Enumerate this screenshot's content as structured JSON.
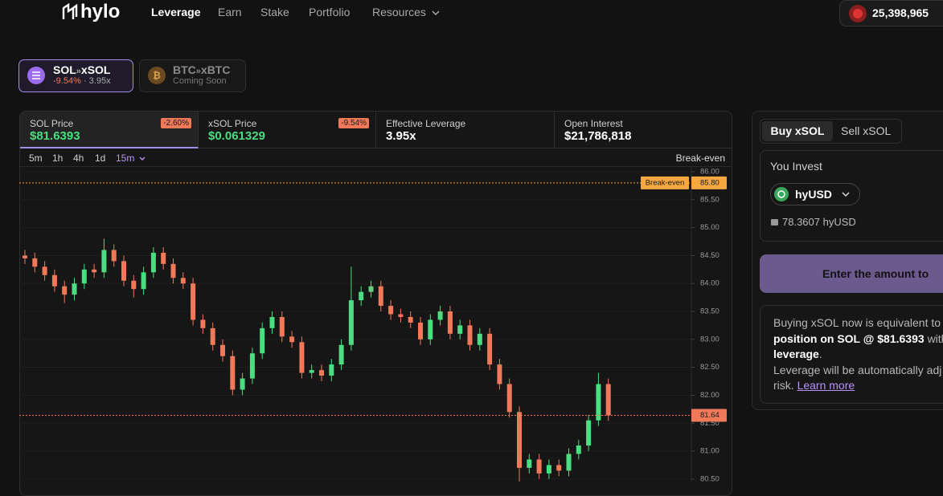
{
  "nav": {
    "logo": "hylo",
    "links": [
      "Leverage",
      "Earn",
      "Stake",
      "Portfolio",
      "Resources"
    ],
    "balance": "25,398,965"
  },
  "pairs": [
    {
      "base": "SOL",
      "sep": "»",
      "target": "xSOL",
      "change": "-9.54%",
      "dot": "·",
      "leverage": "3.95x"
    },
    {
      "base": "BTC",
      "sep": "»",
      "target": "xBTC",
      "status": "Coming Soon"
    }
  ],
  "stats": [
    {
      "label": "SOL Price",
      "value": "$81.6393",
      "badge": "-2.60%"
    },
    {
      "label": "xSOL Price",
      "value": "$0.061329",
      "badge": "-9.54%"
    },
    {
      "label": "Effective Leverage",
      "value": "3.95x"
    },
    {
      "label": "Open Interest",
      "value": "$21,786,818"
    }
  ],
  "timeframes": [
    "5m",
    "1h",
    "4h",
    "1d",
    "15m"
  ],
  "chart_data": {
    "type": "candlestick",
    "indicator": "Break-even",
    "up_color": "#4ade80",
    "down_color": "#f0795a",
    "open": [
      84.5,
      84.45,
      84.3,
      84.15,
      83.95,
      83.8,
      84.0,
      84.25,
      84.2,
      84.6,
      84.4,
      84.05,
      83.9,
      84.2,
      84.55,
      84.35,
      84.1,
      84.0,
      83.35,
      83.2,
      82.9,
      82.7,
      82.1,
      82.3,
      82.75,
      83.2,
      83.4,
      83.05,
      82.95,
      82.4,
      82.45,
      82.35,
      82.55,
      82.9,
      83.7,
      83.85,
      83.95,
      83.6,
      83.45,
      83.4,
      83.3,
      83.0,
      83.35,
      83.5,
      83.1,
      83.25,
      82.9,
      83.1,
      82.55,
      82.2,
      81.7,
      80.7,
      80.85,
      80.6,
      80.75,
      80.65,
      80.95,
      81.1,
      81.55,
      82.2
    ],
    "high": [
      84.6,
      84.55,
      84.4,
      84.25,
      84.05,
      84.1,
      84.35,
      84.35,
      84.8,
      84.7,
      84.5,
      84.15,
      84.3,
      84.65,
      84.65,
      84.45,
      84.2,
      84.1,
      83.45,
      83.3,
      83.0,
      82.8,
      82.4,
      82.85,
      83.3,
      83.5,
      83.5,
      83.15,
      83.05,
      82.55,
      82.55,
      82.65,
      83.0,
      84.3,
      83.95,
      84.05,
      84.05,
      83.7,
      83.55,
      83.5,
      83.4,
      83.45,
      83.6,
      83.6,
      83.35,
      83.35,
      83.2,
      83.2,
      82.65,
      82.3,
      81.8,
      80.95,
      80.95,
      80.85,
      80.85,
      81.05,
      81.2,
      81.65,
      82.4,
      82.3
    ],
    "low": [
      84.35,
      84.2,
      84.05,
      83.85,
      83.65,
      83.7,
      83.9,
      84.1,
      84.1,
      84.3,
      83.95,
      83.75,
      83.8,
      84.1,
      84.25,
      84.0,
      83.9,
      83.25,
      83.1,
      82.8,
      82.6,
      82.0,
      82.0,
      82.2,
      82.65,
      83.1,
      82.95,
      82.85,
      82.3,
      82.3,
      82.25,
      82.25,
      82.45,
      82.8,
      83.6,
      83.75,
      83.5,
      83.35,
      83.3,
      83.2,
      82.9,
      82.9,
      83.25,
      83.0,
      83.0,
      82.8,
      82.8,
      82.45,
      82.1,
      81.6,
      80.4,
      80.6,
      80.5,
      80.5,
      80.55,
      80.55,
      80.85,
      81.0,
      81.45,
      81.54
    ],
    "close": [
      84.45,
      84.3,
      84.15,
      83.95,
      83.8,
      84.0,
      84.25,
      84.2,
      84.6,
      84.4,
      84.05,
      83.9,
      84.2,
      84.55,
      84.35,
      84.1,
      84.0,
      83.35,
      83.2,
      82.9,
      82.7,
      82.1,
      82.3,
      82.75,
      83.2,
      83.4,
      83.05,
      82.95,
      82.4,
      82.45,
      82.35,
      82.55,
      82.9,
      83.7,
      83.85,
      83.95,
      83.6,
      83.45,
      83.4,
      83.3,
      83.0,
      83.35,
      83.5,
      83.1,
      83.25,
      82.9,
      83.1,
      82.55,
      82.2,
      81.7,
      80.7,
      80.85,
      80.6,
      80.75,
      80.65,
      80.95,
      81.1,
      81.55,
      82.2,
      81.64
    ],
    "ylim": [
      80.455,
      86.1
    ],
    "yticks": [
      {
        "value": 86,
        "label": "86.00"
      },
      {
        "value": 85.5,
        "label": "85.50"
      },
      {
        "value": 85,
        "label": "85.00"
      },
      {
        "value": 84.5,
        "label": "84.50"
      },
      {
        "value": 84,
        "label": "84.00"
      },
      {
        "value": 83.5,
        "label": "83.50"
      },
      {
        "value": 83,
        "label": "83.00"
      },
      {
        "value": 82.5,
        "label": "82.50"
      },
      {
        "value": 82,
        "label": "82.00"
      },
      {
        "value": 81.5,
        "label": "81.50"
      },
      {
        "value": 81,
        "label": "81.00"
      },
      {
        "value": 80.5,
        "label": "80.50"
      }
    ],
    "grid": true,
    "markers": [
      {
        "label": "Break-even",
        "value": 85.8,
        "value_label": "85.80",
        "color": "#f5a742"
      },
      {
        "value": 81.64,
        "value_label": "81.64",
        "color": "#f0795a"
      }
    ]
  },
  "trade": {
    "tabs": [
      "Buy xSOL",
      "Sell xSOL"
    ],
    "invest_label": "You Invest",
    "token": "hyUSD",
    "balance": "78.3607 hyUSD",
    "button": "Enter the amount to",
    "info": {
      "line1": "Buying xSOL now is equivalent to",
      "bold1": "position on SOL @ $81.6393",
      "with": "with",
      "bold2": "leverage",
      "period": ".",
      "line3": "Leverage will be automatically adj",
      "risk": "risk.",
      "link": "Learn more"
    }
  }
}
